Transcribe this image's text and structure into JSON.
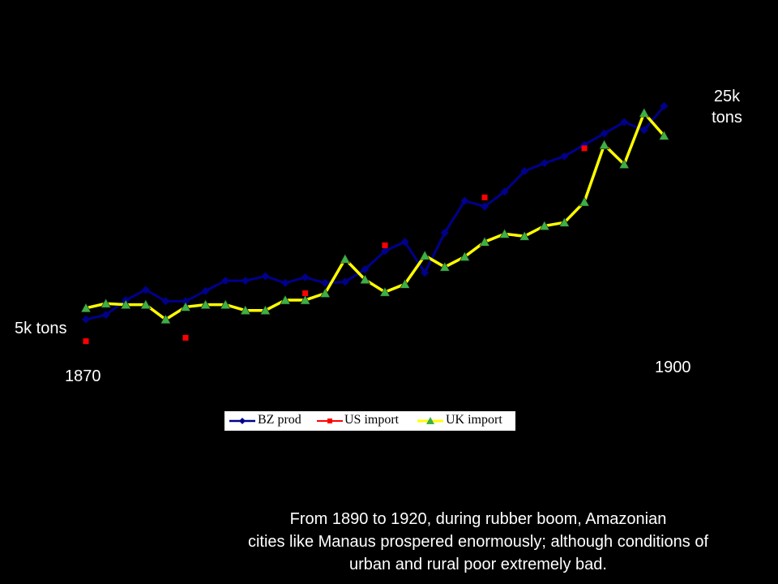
{
  "annotations": {
    "top_right": [
      "25k",
      "tons"
    ],
    "left": "5k tons",
    "start_year": "1870",
    "end_year": "1900"
  },
  "caption": {
    "line1": "From 1890 to 1920, during rubber boom, Amazonian",
    "line2": "cities like Manaus prospered enormously; although conditions of",
    "line3": "urban and rural poor extremely bad."
  },
  "colors": {
    "background": "#000000",
    "bz_line": "#00008b",
    "us_marker": "#ff0000",
    "uk_line": "#ffff00",
    "uk_marker": "#3cb043"
  },
  "chart_data": {
    "type": "line",
    "x": [
      1870,
      1871,
      1872,
      1873,
      1874,
      1875,
      1876,
      1877,
      1878,
      1879,
      1880,
      1881,
      1882,
      1883,
      1884,
      1885,
      1886,
      1887,
      1888,
      1889,
      1890,
      1891,
      1892,
      1893,
      1894,
      1895,
      1896,
      1897,
      1898,
      1899,
      1900
    ],
    "ylim": [
      0,
      28
    ],
    "legend": "bottom-center",
    "grid": false,
    "series": [
      {
        "name": "BZ prod",
        "marker": "diamond",
        "values": [
          6.9,
          7.3,
          8.6,
          9.5,
          8.5,
          8.5,
          9.4,
          10.3,
          10.3,
          10.7,
          10.1,
          10.6,
          10.1,
          10.2,
          11.3,
          12.9,
          13.7,
          11.0,
          14.5,
          17.3,
          16.8,
          18.1,
          19.9,
          20.6,
          21.2,
          22.2,
          23.2,
          24.2,
          23.5,
          25.6,
          null
        ]
      },
      {
        "name": "US import",
        "marker": "square",
        "values": [
          5.0,
          null,
          null,
          null,
          null,
          5.3,
          null,
          null,
          null,
          null,
          null,
          9.2,
          null,
          null,
          null,
          13.4,
          null,
          null,
          null,
          null,
          17.6,
          null,
          null,
          null,
          null,
          21.9,
          null,
          null,
          null,
          null,
          null
        ]
      },
      {
        "name": "UK import",
        "marker": "triangle",
        "values": [
          7.9,
          8.3,
          8.2,
          8.2,
          6.9,
          8.0,
          8.2,
          8.2,
          7.7,
          7.7,
          8.6,
          8.6,
          9.2,
          12.2,
          10.4,
          9.3,
          10.0,
          12.5,
          11.5,
          12.4,
          13.7,
          14.4,
          14.2,
          15.1,
          15.4,
          17.2,
          22.2,
          20.5,
          25.0,
          23.0,
          null
        ]
      }
    ]
  }
}
